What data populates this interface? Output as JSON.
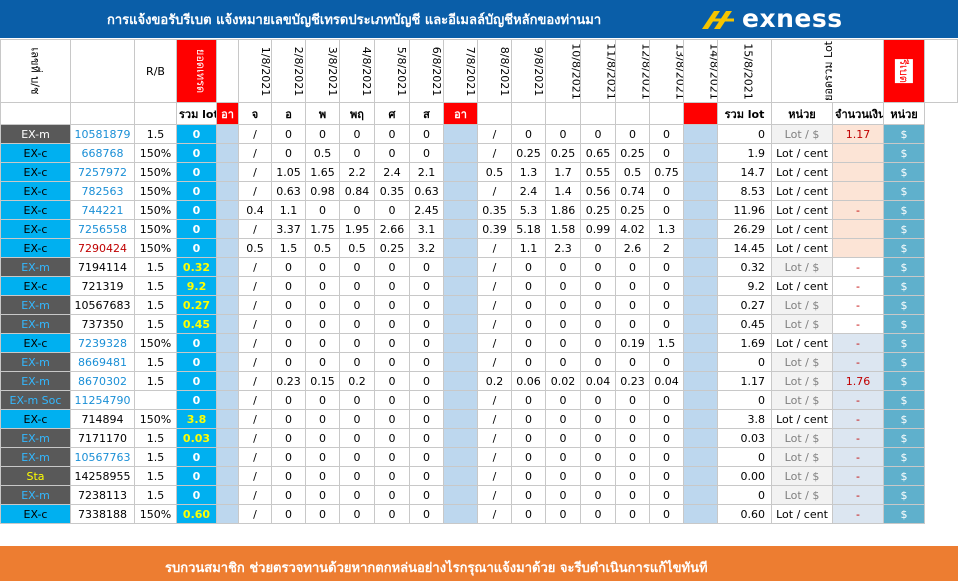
{
  "header": {
    "title": "การแจ้งขอรับรีเบต   แจ้งหมายเลขบัญชีเทรดประเภทบัญชี และอีเมลล์บัญชีหลักของท่านมา",
    "logo_text": "exness"
  },
  "columns": {
    "account_header": "เลขที่ บ/ช",
    "rb_header": "R/B",
    "total_header": "ยอดเทรด",
    "dates": [
      "1/8/2021",
      "2/8/2021",
      "3/8/2021",
      "4/8/2021",
      "5/8/2021",
      "6/8/2021",
      "7/8/2021",
      "8/8/2021",
      "9/8/2021",
      "10/8/2021",
      "11/8/2021",
      "12/8/2021",
      "13/8/2021",
      "14/8/2021",
      "15/8/2021"
    ],
    "lot_sum_header": "ยอดรวม Lot",
    "rebate_header": "รีเบต"
  },
  "subheader": {
    "total_lot": "รวม lot",
    "days": [
      "อา",
      "จ",
      "อ",
      "พ",
      "พฤ",
      "ศ",
      "ส",
      "อา"
    ],
    "sum_lot": "รวม lot",
    "unit": "หน่วย",
    "amount": "จำนวนเงิน",
    "unit2": "หน่วย"
  },
  "rows": [
    {
      "type": "EX-m",
      "account": "10581879",
      "rb": "1.5",
      "total": "0",
      "d": [
        "",
        "/",
        "0",
        "0",
        "0",
        "0",
        "0",
        "",
        "/",
        "0",
        "0",
        "0",
        "0",
        "0",
        ""
      ],
      "sum": "0",
      "unit": "Lot / $",
      "amount": "1.17",
      "cur": "$"
    },
    {
      "type": "EX-c",
      "account": "668768",
      "rb": "150%",
      "total": "0",
      "d": [
        "",
        "/",
        "0",
        "0.5",
        "0",
        "0",
        "0",
        "",
        "/",
        "0.25",
        "0.25",
        "0.65",
        "0.25",
        "0",
        ""
      ],
      "sum": "1.9",
      "unit": "Lot / cent",
      "amount": "",
      "cur": "$"
    },
    {
      "type": "EX-c",
      "account": "7257972",
      "rb": "150%",
      "total": "0",
      "d": [
        "",
        "/",
        "1.05",
        "1.65",
        "2.2",
        "2.4",
        "2.1",
        "",
        "0.5",
        "1.3",
        "1.7",
        "0.55",
        "0.5",
        "0.75",
        ""
      ],
      "sum": "14.7",
      "unit": "Lot / cent",
      "amount": "",
      "cur": "$"
    },
    {
      "type": "EX-c",
      "account": "782563",
      "rb": "150%",
      "total": "0",
      "d": [
        "",
        "/",
        "0.63",
        "0.98",
        "0.84",
        "0.35",
        "0.63",
        "",
        "/",
        "2.4",
        "1.4",
        "0.56",
        "0.74",
        "0",
        ""
      ],
      "sum": "8.53",
      "unit": "Lot / cent",
      "amount": "",
      "cur": "$"
    },
    {
      "type": "EX-c",
      "account": "744221",
      "rb": "150%",
      "total": "0",
      "d": [
        "",
        "0.4",
        "1.1",
        "0",
        "0",
        "0",
        "2.45",
        "",
        "0.35",
        "5.3",
        "1.86",
        "0.25",
        "0.25",
        "0",
        ""
      ],
      "sum": "11.96",
      "unit": "Lot / cent",
      "amount": "-",
      "cur": "$"
    },
    {
      "type": "EX-c",
      "account": "7256558",
      "rb": "150%",
      "total": "0",
      "d": [
        "",
        "/",
        "3.37",
        "1.75",
        "1.95",
        "2.66",
        "3.1",
        "",
        "0.39",
        "5.18",
        "1.58",
        "0.99",
        "4.02",
        "1.3",
        ""
      ],
      "sum": "26.29",
      "unit": "Lot / cent",
      "amount": "",
      "cur": "$"
    },
    {
      "type": "EX-c",
      "account": "7290424",
      "rb": "150%",
      "total": "0",
      "d": [
        "",
        "0.5",
        "1.5",
        "0.5",
        "0.5",
        "0.25",
        "3.2",
        "",
        "/",
        "1.1",
        "2.3",
        "0",
        "2.6",
        "2",
        ""
      ],
      "sum": "14.45",
      "unit": "Lot / cent",
      "amount": "",
      "cur": "$"
    },
    {
      "type": "EX-m",
      "account": "7194114",
      "rb": "1.5",
      "total": "0.32",
      "d": [
        "",
        "/",
        "0",
        "0",
        "0",
        "0",
        "0",
        "",
        "/",
        "0",
        "0",
        "0",
        "0",
        "0",
        ""
      ],
      "sum": "0.32",
      "unit": "Lot / $",
      "amount": "-",
      "cur": "$"
    },
    {
      "type": "EX-c",
      "account": "721319",
      "rb": "1.5",
      "total": "9.2",
      "d": [
        "",
        "/",
        "0",
        "0",
        "0",
        "0",
        "0",
        "",
        "/",
        "0",
        "0",
        "0",
        "0",
        "0",
        ""
      ],
      "sum": "9.2",
      "unit": "Lot / cent",
      "amount": "-",
      "cur": "$"
    },
    {
      "type": "EX-m",
      "account": "10567683",
      "rb": "1.5",
      "total": "0.27",
      "d": [
        "",
        "/",
        "0",
        "0",
        "0",
        "0",
        "0",
        "",
        "/",
        "0",
        "0",
        "0",
        "0",
        "0",
        ""
      ],
      "sum": "0.27",
      "unit": "Lot / $",
      "amount": "-",
      "cur": "$"
    },
    {
      "type": "EX-m",
      "account": "737350",
      "rb": "1.5",
      "total": "0.45",
      "d": [
        "",
        "/",
        "0",
        "0",
        "0",
        "0",
        "0",
        "",
        "/",
        "0",
        "0",
        "0",
        "0",
        "0",
        ""
      ],
      "sum": "0.45",
      "unit": "Lot / $",
      "amount": "-",
      "cur": "$"
    },
    {
      "type": "EX-c",
      "account": "7239328",
      "rb": "150%",
      "total": "0",
      "d": [
        "",
        "/",
        "0",
        "0",
        "0",
        "0",
        "0",
        "",
        "/",
        "0",
        "0",
        "0",
        "0.19",
        "1.5",
        ""
      ],
      "sum": "1.69",
      "unit": "Lot / cent",
      "amount": "-",
      "cur": "$"
    },
    {
      "type": "EX-m",
      "account": "8669481",
      "rb": "1.5",
      "total": "0",
      "d": [
        "",
        "/",
        "0",
        "0",
        "0",
        "0",
        "0",
        "",
        "/",
        "0",
        "0",
        "0",
        "0",
        "0",
        ""
      ],
      "sum": "0",
      "unit": "Lot / $",
      "amount": "-",
      "cur": "$"
    },
    {
      "type": "EX-m",
      "account": "8670302",
      "rb": "1.5",
      "total": "0",
      "d": [
        "",
        "/",
        "0.23",
        "0.15",
        "0.2",
        "0",
        "0",
        "",
        "0.2",
        "0.06",
        "0.02",
        "0.04",
        "0.23",
        "0.04",
        ""
      ],
      "sum": "1.17",
      "unit": "Lot / $",
      "amount": "1.76",
      "cur": "$"
    },
    {
      "type": "EX-m Soc",
      "account": "11254790",
      "rb": "",
      "total": "0",
      "d": [
        "",
        "/",
        "0",
        "0",
        "0",
        "0",
        "0",
        "",
        "/",
        "0",
        "0",
        "0",
        "0",
        "0",
        ""
      ],
      "sum": "0",
      "unit": "Lot / $",
      "amount": "-",
      "cur": "$"
    },
    {
      "type": "EX-c",
      "account": "714894",
      "rb": "150%",
      "total": "3.8",
      "d": [
        "",
        "/",
        "0",
        "0",
        "0",
        "0",
        "0",
        "",
        "/",
        "0",
        "0",
        "0",
        "0",
        "0",
        ""
      ],
      "sum": "3.8",
      "unit": "Lot / cent",
      "amount": "-",
      "cur": "$"
    },
    {
      "type": "EX-m",
      "account": "7171170",
      "rb": "1.5",
      "total": "0.03",
      "d": [
        "",
        "/",
        "0",
        "0",
        "0",
        "0",
        "0",
        "",
        "/",
        "0",
        "0",
        "0",
        "0",
        "0",
        ""
      ],
      "sum": "0.03",
      "unit": "Lot / $",
      "amount": "-",
      "cur": "$"
    },
    {
      "type": "EX-m",
      "account": "10567763",
      "rb": "1.5",
      "total": "0",
      "d": [
        "",
        "/",
        "0",
        "0",
        "0",
        "0",
        "0",
        "",
        "/",
        "0",
        "0",
        "0",
        "0",
        "0",
        ""
      ],
      "sum": "0",
      "unit": "Lot / $",
      "amount": "-",
      "cur": "$"
    },
    {
      "type": "Sta",
      "account": "14258955",
      "rb": "1.5",
      "total": "0",
      "d": [
        "",
        "/",
        "0",
        "0",
        "0",
        "0",
        "0",
        "",
        "/",
        "0",
        "0",
        "0",
        "0",
        "0",
        ""
      ],
      "sum": "0.00",
      "unit": "Lot / $",
      "amount": "-",
      "cur": "$"
    },
    {
      "type": "EX-m",
      "account": "7238113",
      "rb": "1.5",
      "total": "0",
      "d": [
        "",
        "/",
        "0",
        "0",
        "0",
        "0",
        "0",
        "",
        "/",
        "0",
        "0",
        "0",
        "0",
        "0",
        ""
      ],
      "sum": "0",
      "unit": "Lot / $",
      "amount": "-",
      "cur": "$"
    },
    {
      "type": "EX-c",
      "account": "7338188",
      "rb": "150%",
      "total": "0.60",
      "d": [
        "",
        "/",
        "0",
        "0",
        "0",
        "0",
        "0",
        "",
        "/",
        "0",
        "0",
        "0",
        "0",
        "0",
        ""
      ],
      "sum": "0.60",
      "unit": "Lot / cent",
      "amount": "-",
      "cur": "$"
    }
  ],
  "footer": {
    "message": "รบกวนสมาชิก ช่วยตรวจทานด้วยหากตกหล่นอย่างไรกรุณาแจ้งมาด้วย จะรีบดำเนินการแก้ไขทันที"
  },
  "colors": {
    "title_bg": "#0a5ea8",
    "footer_bg": "#ed7d31",
    "accent_cyan": "#00b0f0",
    "row_gray": "#595959",
    "red": "#ff0000"
  }
}
